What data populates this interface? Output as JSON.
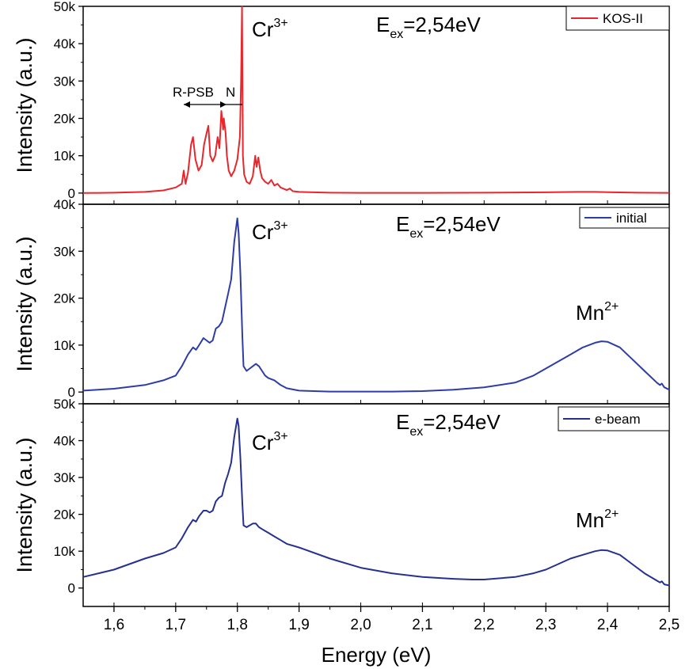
{
  "chart_data": {
    "type": "line",
    "xlabel": "Energy (eV)",
    "xlim": [
      1.55,
      2.5
    ],
    "xticks": [
      1.6,
      1.7,
      1.8,
      1.9,
      2.0,
      2.1,
      2.2,
      2.3,
      2.4,
      2.5
    ],
    "xtick_labels": [
      "1,6",
      "1,7",
      "1,8",
      "1,9",
      "2,0",
      "2,1",
      "2,2",
      "2,3",
      "2,4",
      "2,5"
    ],
    "panels": [
      {
        "ylabel": "Intensity (a.u.)",
        "ylim": [
          -3000,
          50000
        ],
        "yticks": [
          0,
          10000,
          20000,
          30000,
          40000,
          50000
        ],
        "ytick_labels": [
          "0",
          "10k",
          "20k",
          "30k",
          "40k",
          "50k"
        ],
        "series": [
          {
            "name": "KOS-II",
            "color": "#e8262c",
            "x": [
              1.55,
              1.6,
              1.65,
              1.68,
              1.7,
              1.71,
              1.713,
              1.716,
              1.72,
              1.725,
              1.728,
              1.732,
              1.737,
              1.742,
              1.746,
              1.75,
              1.753,
              1.756,
              1.76,
              1.764,
              1.768,
              1.771,
              1.774,
              1.777,
              1.778,
              1.781,
              1.783,
              1.786,
              1.79,
              1.795,
              1.8,
              1.804,
              1.806,
              1.8075,
              1.809,
              1.811,
              1.815,
              1.82,
              1.825,
              1.829,
              1.831,
              1.834,
              1.837,
              1.84,
              1.845,
              1.85,
              1.855,
              1.86,
              1.865,
              1.87,
              1.88,
              1.885,
              1.89,
              1.9,
              1.95,
              2.0,
              2.1,
              2.2,
              2.3,
              2.35,
              2.38,
              2.41,
              2.45,
              2.5
            ],
            "y": [
              0,
              100,
              300,
              700,
              1500,
              2500,
              6000,
              2500,
              5500,
              13000,
              15000,
              9000,
              6000,
              7500,
              13000,
              16000,
              18000,
              10000,
              8500,
              10000,
              15000,
              12000,
              22000,
              17000,
              20000,
              16000,
              10000,
              6000,
              4500,
              6000,
              9000,
              15000,
              30000,
              50000,
              10000,
              5000,
              3000,
              2500,
              4500,
              10000,
              7000,
              9500,
              6000,
              4000,
              3000,
              2500,
              3500,
              2000,
              2500,
              1500,
              800,
              1200,
              500,
              300,
              100,
              50,
              50,
              100,
              200,
              300,
              300,
              200,
              100,
              50
            ]
          }
        ],
        "annotations": {
          "ion": "Cr",
          "ion_charge": "3+",
          "excitation": "E",
          "excitation_sub": "ex",
          "excitation_value": "=2,54eV",
          "rpsb": "R-PSB",
          "n": "N"
        }
      },
      {
        "ylabel": "Intensity (a.u.)",
        "ylim": [
          -2500,
          40000
        ],
        "yticks": [
          0,
          10000,
          20000,
          30000,
          40000
        ],
        "ytick_labels": [
          "0",
          "10k",
          "20k",
          "30k",
          "40k"
        ],
        "series": [
          {
            "name": "initial",
            "color": "#2e3da6",
            "x": [
              1.55,
              1.6,
              1.65,
              1.68,
              1.7,
              1.71,
              1.72,
              1.728,
              1.733,
              1.738,
              1.745,
              1.75,
              1.755,
              1.76,
              1.765,
              1.77,
              1.775,
              1.78,
              1.785,
              1.79,
              1.795,
              1.8,
              1.802,
              1.805,
              1.808,
              1.81,
              1.815,
              1.82,
              1.825,
              1.83,
              1.835,
              1.84,
              1.845,
              1.85,
              1.86,
              1.87,
              1.88,
              1.9,
              1.95,
              2.0,
              2.05,
              2.1,
              2.15,
              2.2,
              2.25,
              2.28,
              2.3,
              2.32,
              2.34,
              2.36,
              2.38,
              2.39,
              2.4,
              2.42,
              2.44,
              2.46,
              2.48,
              2.485,
              2.488,
              2.492,
              2.5
            ],
            "y": [
              300,
              700,
              1500,
              2500,
              3500,
              5500,
              8000,
              9500,
              9000,
              10000,
              11500,
              11000,
              10500,
              11000,
              13500,
              14000,
              15000,
              18000,
              21000,
              24000,
              32000,
              37000,
              34000,
              25000,
              12000,
              5500,
              4500,
              5000,
              5500,
              6000,
              5500,
              4500,
              3500,
              3000,
              2500,
              1500,
              800,
              300,
              100,
              100,
              100,
              200,
              500,
              1000,
              2000,
              3500,
              5000,
              6500,
              8000,
              9500,
              10500,
              10800,
              10700,
              9500,
              7000,
              4500,
              2000,
              1500,
              1800,
              1000,
              500
            ]
          }
        ],
        "annotations": {
          "ion": "Cr",
          "ion_charge": "3+",
          "excitation": "E",
          "excitation_sub": "ex",
          "excitation_value": "=2,54eV",
          "ion2": "Mn",
          "ion2_charge": "2+"
        }
      },
      {
        "ylabel": "Intensity (a.u.)",
        "ylim": [
          -5000,
          50000
        ],
        "yticks": [
          0,
          10000,
          20000,
          30000,
          40000,
          50000
        ],
        "ytick_labels": [
          "0",
          "10k",
          "20k",
          "30k",
          "40k",
          "50k"
        ],
        "series": [
          {
            "name": "e-beam",
            "color": "#26318f",
            "x": [
              1.55,
              1.6,
              1.65,
              1.68,
              1.7,
              1.71,
              1.72,
              1.728,
              1.733,
              1.738,
              1.745,
              1.75,
              1.755,
              1.76,
              1.765,
              1.77,
              1.775,
              1.78,
              1.785,
              1.79,
              1.795,
              1.8,
              1.802,
              1.805,
              1.808,
              1.81,
              1.815,
              1.82,
              1.825,
              1.83,
              1.835,
              1.84,
              1.845,
              1.85,
              1.86,
              1.87,
              1.88,
              1.9,
              1.95,
              2.0,
              2.05,
              2.1,
              2.15,
              2.18,
              2.2,
              2.25,
              2.28,
              2.3,
              2.32,
              2.34,
              2.36,
              2.38,
              2.39,
              2.4,
              2.42,
              2.44,
              2.46,
              2.48,
              2.485,
              2.488,
              2.492,
              2.5
            ],
            "y": [
              3000,
              5000,
              8000,
              9500,
              11000,
              13500,
              16500,
              18500,
              18000,
              19500,
              21000,
              21000,
              20500,
              21000,
              23500,
              24500,
              25000,
              28500,
              31000,
              34000,
              41000,
              46000,
              44000,
              35000,
              23000,
              17000,
              16500,
              17000,
              17500,
              17500,
              16500,
              16000,
              15500,
              15000,
              14000,
              13000,
              12000,
              11000,
              8000,
              5500,
              4000,
              3000,
              2500,
              2300,
              2300,
              3000,
              4000,
              5000,
              6500,
              8000,
              9000,
              10000,
              10300,
              10200,
              9000,
              6500,
              4000,
              2000,
              1500,
              1800,
              1000,
              700
            ]
          }
        ],
        "annotations": {
          "ion": "Cr",
          "ion_charge": "3+",
          "excitation": "E",
          "excitation_sub": "ex",
          "excitation_value": "=2,54eV",
          "ion2": "Mn",
          "ion2_charge": "2+"
        }
      }
    ]
  }
}
